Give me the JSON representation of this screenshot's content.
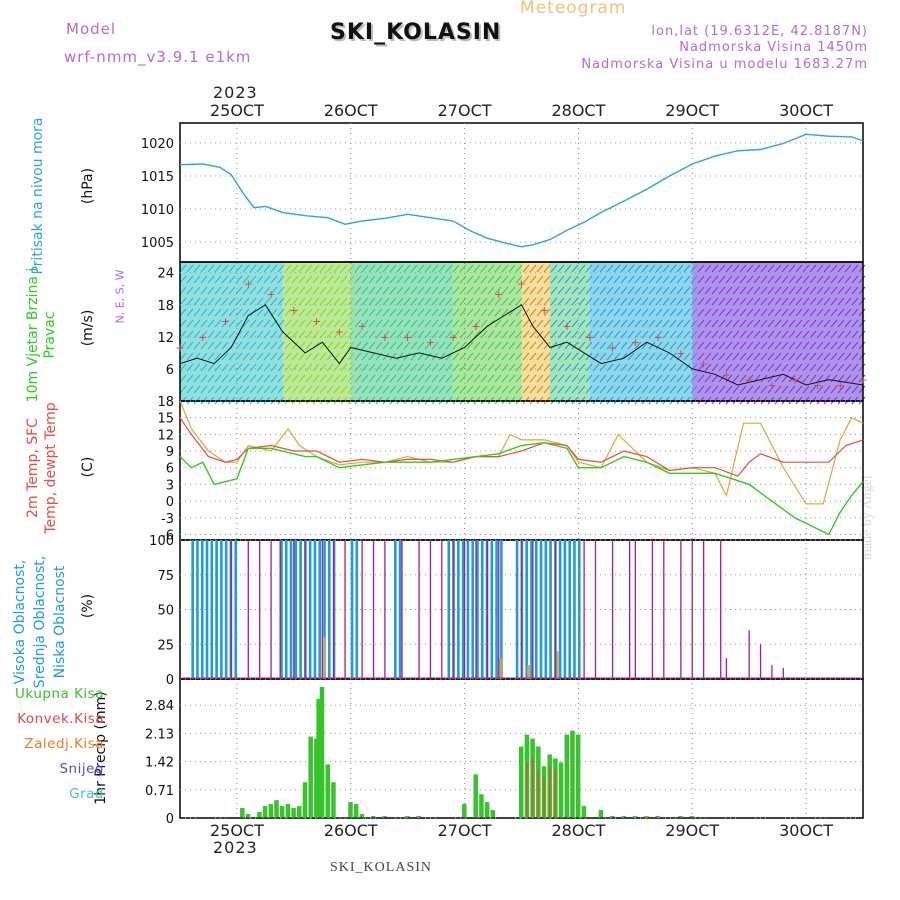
{
  "header": {
    "title": "SKI_KOLASIN",
    "meteogram_label": "Meteogram",
    "model_label": "Model",
    "model_name": "wrf-nmm_v3.9.1 e1km",
    "lonlat": "lon,lat (19.6312E, 42.8187N)",
    "elevation": "Nadmorska Visina 1450m",
    "model_elevation": "Nadmorska Visina u modelu 1683.27m",
    "year": "2023"
  },
  "footer": {
    "station": "SKI_KOLASIN",
    "credit": "made by Angel"
  },
  "colors": {
    "pressure": "#2aa3e6",
    "temp2m": "#ee4b3b",
    "sfc_temp": "#d9a83b",
    "dewpoint": "#2ecc21",
    "high_cloud": "#1f9be0",
    "mid_cloud": "#c8b14a",
    "low_cloud": "#b0188f",
    "precip_total": "#36c42a",
    "precip_conv": "#e84545",
    "precip_frozen": "#f07a2c",
    "snow": "#5050e0",
    "grad": "#40c8c0",
    "wind_speed_line": "#111111",
    "gust_marker": "#e04040"
  },
  "chart_data": [
    {
      "type": "line",
      "panel": "pressure",
      "ylabel_outer": "Pritisak na nivou mora",
      "ylabel": "(hPa)",
      "yticks": [
        "1005",
        "1010",
        "1015",
        "1020"
      ],
      "ylim": [
        1002,
        1023
      ],
      "x_tick_labels": [
        "25OCT",
        "26OCT",
        "27OCT",
        "28OCT",
        "29OCT",
        "30OCT"
      ],
      "x_range_days": [
        24.5,
        30.5
      ],
      "series": [
        {
          "x": [
            24.5,
            24.7,
            24.85,
            24.95,
            25.05,
            25.15,
            25.25,
            25.4,
            25.6,
            25.8,
            25.95,
            26.1,
            26.3,
            26.5,
            26.7,
            26.9,
            27.05,
            27.2,
            27.35,
            27.5,
            27.6,
            27.75,
            27.9,
            28.05,
            28.2,
            28.4,
            28.6,
            28.8,
            29.0,
            29.2,
            29.4,
            29.6,
            29.8,
            30.0,
            30.2,
            30.4,
            30.5
          ],
          "y": [
            1016.7,
            1016.8,
            1016.3,
            1015.2,
            1012.5,
            1010.2,
            1010.4,
            1009.5,
            1009.0,
            1008.7,
            1007.7,
            1008.2,
            1008.6,
            1009.2,
            1008.7,
            1008.2,
            1006.7,
            1005.6,
            1004.9,
            1004.3,
            1004.6,
            1005.4,
            1006.8,
            1008.0,
            1009.5,
            1011.2,
            1013.0,
            1015.0,
            1016.8,
            1018.0,
            1018.8,
            1019.0,
            1019.9,
            1021.3,
            1021.0,
            1020.9,
            1020.3
          ]
        }
      ]
    },
    {
      "type": "line",
      "panel": "wind",
      "ylabel_outer": "10m Vjetar Brzina i Pravac",
      "ylabel": "(m/s)",
      "compass": "N, E, S, W",
      "yticks": [
        "6",
        "12",
        "18",
        "24"
      ],
      "ylim": [
        0,
        26
      ],
      "series": [
        {
          "name": "wind speed",
          "x": [
            24.5,
            24.65,
            24.8,
            24.95,
            25.1,
            25.25,
            25.4,
            25.6,
            25.75,
            25.9,
            26.0,
            26.2,
            26.4,
            26.6,
            26.8,
            27.0,
            27.2,
            27.35,
            27.5,
            27.6,
            27.75,
            27.9,
            28.05,
            28.2,
            28.4,
            28.6,
            28.8,
            29.0,
            29.2,
            29.4,
            29.6,
            29.8,
            30.0,
            30.2,
            30.5
          ],
          "y": [
            7,
            8,
            7,
            10,
            16,
            18,
            13,
            9,
            11,
            7,
            10,
            9,
            8,
            9,
            8,
            10,
            14,
            16,
            18,
            14,
            10,
            11,
            9,
            7,
            8,
            11,
            9,
            6,
            5,
            3,
            4,
            5,
            3,
            4,
            3
          ]
        },
        {
          "name": "gusts",
          "x": [
            24.5,
            24.7,
            24.9,
            25.1,
            25.3,
            25.5,
            25.7,
            25.9,
            26.1,
            26.3,
            26.5,
            26.7,
            26.9,
            27.1,
            27.3,
            27.5,
            27.7,
            27.9,
            28.1,
            28.3,
            28.5,
            28.7,
            28.9,
            29.1,
            29.3,
            29.5,
            29.7,
            29.9,
            30.1,
            30.3,
            30.5
          ],
          "y": [
            10,
            12,
            15,
            22,
            20,
            17,
            15,
            13,
            14,
            12,
            12,
            11,
            12,
            14,
            20,
            22,
            17,
            14,
            12,
            10,
            11,
            12,
            9,
            7,
            5,
            4,
            3,
            4,
            3,
            3,
            4
          ]
        }
      ]
    },
    {
      "type": "line",
      "panel": "temperature",
      "ylabel_outer": "2m Temp, SFC Temp, dewpt Temp",
      "ylabel": "(C)",
      "yticks": [
        "-6",
        "-3",
        "0",
        "3",
        "6",
        "9",
        "12",
        "15",
        "18"
      ],
      "ylim": [
        -7,
        18
      ],
      "series": [
        {
          "name": "2m Temp",
          "x": [
            24.5,
            24.6,
            24.75,
            24.9,
            25.0,
            25.1,
            25.3,
            25.5,
            25.7,
            25.9,
            26.1,
            26.3,
            26.5,
            26.7,
            26.9,
            27.1,
            27.3,
            27.5,
            27.7,
            27.9,
            28.0,
            28.2,
            28.4,
            28.6,
            28.8,
            29.0,
            29.2,
            29.4,
            29.5,
            29.6,
            29.8,
            30.0,
            30.2,
            30.35,
            30.5
          ],
          "y": [
            15,
            12,
            8,
            7,
            7.5,
            9.5,
            10,
            9,
            9,
            7,
            7.5,
            7,
            7.5,
            7.5,
            7,
            8,
            8,
            9,
            10.5,
            10,
            7.5,
            7,
            9,
            8,
            5.5,
            6,
            6,
            4.5,
            7,
            8.5,
            7,
            7,
            7,
            10,
            11
          ]
        },
        {
          "name": "SFC Temp",
          "x": [
            24.5,
            24.6,
            24.75,
            24.9,
            25.0,
            25.1,
            25.3,
            25.45,
            25.55,
            25.7,
            25.9,
            26.1,
            26.3,
            26.5,
            26.7,
            26.9,
            27.1,
            27.3,
            27.4,
            27.5,
            27.7,
            27.9,
            28.0,
            28.2,
            28.35,
            28.45,
            28.6,
            28.8,
            29.0,
            29.2,
            29.3,
            29.45,
            29.6,
            29.8,
            30.0,
            30.15,
            30.3,
            30.4,
            30.5
          ],
          "y": [
            18,
            13,
            9,
            7,
            7,
            10,
            9,
            13,
            10,
            8,
            6.5,
            7,
            7,
            8,
            7,
            7,
            8,
            8,
            12,
            11,
            11,
            10,
            7,
            6,
            12,
            10,
            7,
            5.5,
            6,
            5,
            1,
            14,
            14,
            6,
            -0.5,
            -0.5,
            11,
            15,
            14
          ]
        },
        {
          "name": "dewpt Temp",
          "x": [
            24.5,
            24.6,
            24.7,
            24.8,
            24.9,
            25.0,
            25.1,
            25.3,
            25.5,
            25.6,
            25.7,
            25.9,
            26.1,
            26.3,
            26.5,
            26.7,
            26.9,
            27.1,
            27.3,
            27.5,
            27.7,
            27.9,
            28.0,
            28.2,
            28.4,
            28.6,
            28.8,
            29.0,
            29.2,
            29.35,
            29.5,
            29.7,
            29.9,
            30.0,
            30.1,
            30.2,
            30.3,
            30.4,
            30.5
          ],
          "y": [
            8,
            6,
            7,
            3,
            3.5,
            4,
            9.5,
            9.5,
            8.5,
            8,
            8,
            6,
            6.5,
            7,
            7,
            7,
            7.5,
            8,
            8.5,
            10,
            10.5,
            9.5,
            6,
            6,
            8,
            7,
            5,
            5,
            5,
            4,
            3,
            0,
            -3,
            -4,
            -5,
            -6,
            -2,
            1,
            3.5
          ]
        }
      ]
    },
    {
      "type": "bar",
      "panel": "clouds",
      "ylabel_outer": "Visoka Oblacnost, Srednja Oblacnost, Niska Oblacnost",
      "ylabel": "(%)",
      "yticks": [
        "0",
        "25",
        "50",
        "75",
        "100"
      ],
      "ylim": [
        0,
        100
      ],
      "series": [
        {
          "name": "Visoka Oblacnost",
          "x_ranges": [
            [
              24.6,
              24.98
            ],
            [
              25.38,
              25.85
            ],
            [
              26.0,
              26.05
            ],
            [
              26.38,
              26.46
            ],
            [
              26.85,
              27.35
            ],
            [
              27.45,
              28.0
            ]
          ],
          "values": [
            100,
            100,
            100,
            100,
            100,
            100
          ]
        },
        {
          "name": "Niska Oblacnost",
          "x": [
            24.95,
            25.1,
            25.2,
            25.3,
            25.38,
            25.5,
            25.6,
            25.75,
            25.85,
            25.95,
            26.1,
            26.2,
            26.3,
            26.45,
            26.6,
            26.7,
            26.8,
            26.9,
            27.0,
            27.1,
            27.2,
            27.3,
            27.5,
            27.6,
            27.8,
            28.05,
            28.15,
            28.3,
            28.45,
            28.5,
            28.65,
            28.75,
            28.9,
            29.0,
            29.1,
            29.25,
            29.3,
            29.4,
            29.5,
            29.6,
            29.7,
            29.8
          ],
          "values": [
            100,
            100,
            100,
            100,
            100,
            100,
            100,
            100,
            100,
            100,
            100,
            100,
            100,
            100,
            100,
            100,
            100,
            100,
            100,
            100,
            100,
            100,
            100,
            100,
            100,
            100,
            100,
            100,
            100,
            100,
            100,
            100,
            100,
            100,
            100,
            100,
            15,
            0,
            35,
            25,
            10,
            8
          ]
        },
        {
          "name": "Srednja Oblacnost",
          "x": [
            25.75,
            27.3,
            27.55,
            27.8
          ],
          "values": [
            30,
            15,
            10,
            20
          ]
        }
      ]
    },
    {
      "type": "bar",
      "panel": "precip",
      "ylabel": "1hr Precip (mm)",
      "yticks": [
        "0",
        "0.71",
        "1.42",
        "2.13",
        "2.84"
      ],
      "ylim": [
        0,
        3.5
      ],
      "legend": [
        "Ukupna Kisa",
        "Konvek.Kisa",
        "Zaledj.Kisa",
        "Snijeg",
        "Grad"
      ],
      "series": [
        {
          "name": "Ukupna Kisa",
          "x": [
            25.05,
            25.1,
            25.2,
            25.25,
            25.3,
            25.35,
            25.4,
            25.45,
            25.5,
            25.55,
            25.6,
            25.65,
            25.7,
            25.72,
            25.75,
            25.8,
            25.85,
            26.0,
            26.05,
            26.1,
            26.2,
            26.3,
            26.5,
            26.6,
            27.0,
            27.1,
            27.15,
            27.2,
            27.25,
            27.5,
            27.55,
            27.6,
            27.65,
            27.7,
            27.75,
            27.8,
            27.85,
            27.9,
            27.95,
            28.0,
            28.05,
            28.2,
            28.3,
            28.4,
            28.5,
            28.6,
            28.7,
            28.9,
            29.0
          ],
          "values": [
            0.25,
            0.1,
            0.15,
            0.3,
            0.35,
            0.45,
            0.3,
            0.35,
            0.25,
            0.3,
            0.9,
            2.05,
            2.0,
            3.0,
            3.3,
            1.35,
            0.9,
            0.4,
            0.35,
            0.1,
            0.05,
            0.05,
            0.05,
            0.05,
            0.35,
            1.1,
            0.6,
            0.4,
            0.2,
            1.8,
            2.1,
            2.0,
            1.8,
            1.3,
            1.6,
            1.5,
            1.4,
            2.1,
            2.2,
            2.1,
            0.3,
            0.2,
            0.05,
            0.05,
            0.05,
            0.05,
            0.05,
            0.05,
            0.05
          ]
        },
        {
          "name": "Konvek.Kisa",
          "x": [
            27.55,
            27.6,
            27.65,
            27.7,
            27.75,
            27.8
          ],
          "values": [
            1.4,
            1.5,
            1.2,
            1.0,
            1.3,
            1.2
          ]
        }
      ]
    }
  ]
}
